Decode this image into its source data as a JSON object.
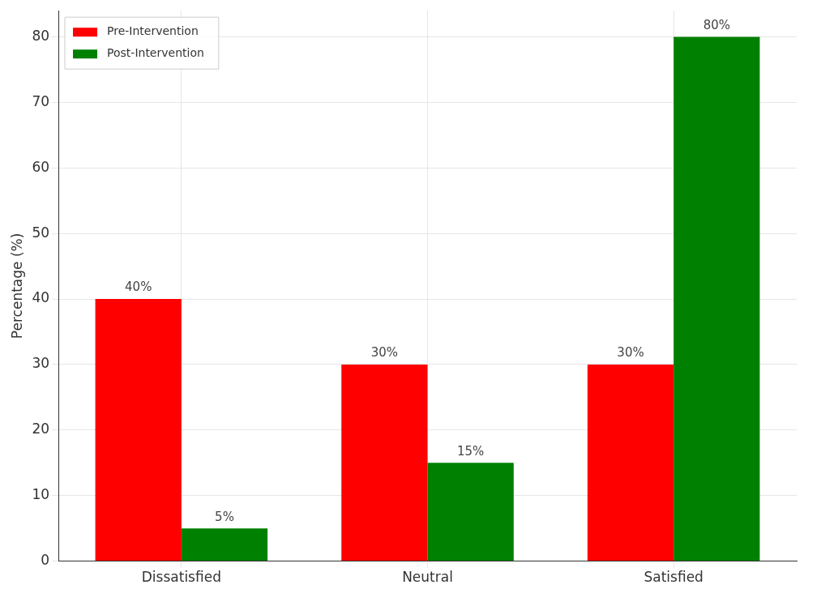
{
  "chart_data": {
    "type": "bar",
    "ylabel": "Percentage (%)",
    "categories": [
      "Dissatisfied",
      "Neutral",
      "Satisfied"
    ],
    "series": [
      {
        "name": "Pre-Intervention",
        "color": "#ff0000",
        "values": [
          40,
          30,
          30
        ],
        "value_labels": [
          "40%",
          "30%",
          "30%"
        ]
      },
      {
        "name": "Post-Intervention",
        "color": "#008000",
        "values": [
          5,
          15,
          80
        ],
        "value_labels": [
          "5%",
          "15%",
          "80%"
        ]
      }
    ],
    "ylim": [
      0,
      84
    ],
    "yticks": [
      0,
      10,
      20,
      30,
      40,
      50,
      60,
      70,
      80
    ],
    "grid": true,
    "legend": "top left"
  }
}
